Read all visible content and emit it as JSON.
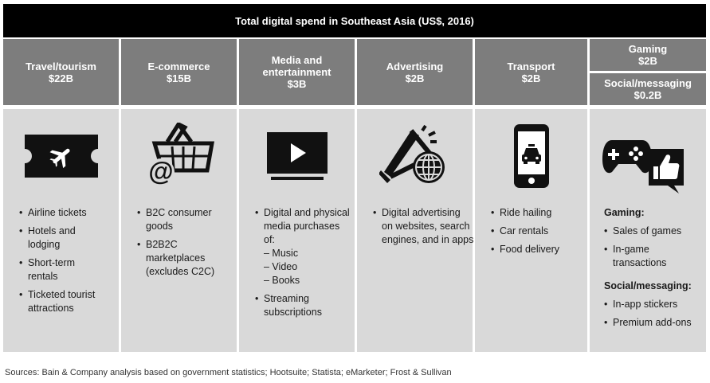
{
  "title": "Total digital spend in Southeast Asia (US$, 2016)",
  "columns": [
    {
      "name": "Travel/tourism",
      "amount": "$22B",
      "icon": "airplane-ticket-icon",
      "bullets": [
        "Airline tickets",
        "Hotels and lodging",
        "Short-term rentals",
        "Ticketed tourist attractions"
      ]
    },
    {
      "name": "E-commerce",
      "amount": "$15B",
      "icon": "shopping-basket-icon",
      "bullets": [
        "B2C consumer goods",
        "B2B2C marketplaces (excludes C2C)"
      ]
    },
    {
      "name": "Media and entertainment",
      "amount": "$3B",
      "icon": "play-screen-icon",
      "bullets": [
        "Digital and physical media purchases of:",
        "Streaming subscriptions"
      ],
      "sub_items": [
        "– Music",
        "– Video",
        "– Books"
      ]
    },
    {
      "name": "Advertising",
      "amount": "$2B",
      "icon": "megaphone-globe-icon",
      "bullets": [
        "Digital advertising on websites, search engines, and in apps"
      ]
    },
    {
      "name": "Transport",
      "amount": "$2B",
      "icon": "phone-taxi-icon",
      "bullets": [
        "Ride hailing",
        "Car rentals",
        "Food delivery"
      ]
    }
  ],
  "last_column": {
    "gaming": {
      "name": "Gaming",
      "amount": "$2B"
    },
    "social": {
      "name": "Social/messaging",
      "amount": "$0.2B"
    },
    "icons": [
      "gamepad-icon",
      "thumbs-up-icon"
    ],
    "gaming_heading": "Gaming:",
    "gaming_bullets": [
      "Sales of games",
      "In-game transactions"
    ],
    "social_heading": "Social/messaging:",
    "social_bullets": [
      "In-app stickers",
      "Premium add-ons"
    ]
  },
  "source": "Sources: Bain & Company analysis based on government statistics; Hootsuite; Statista; eMarketer; Frost & Sullivan"
}
